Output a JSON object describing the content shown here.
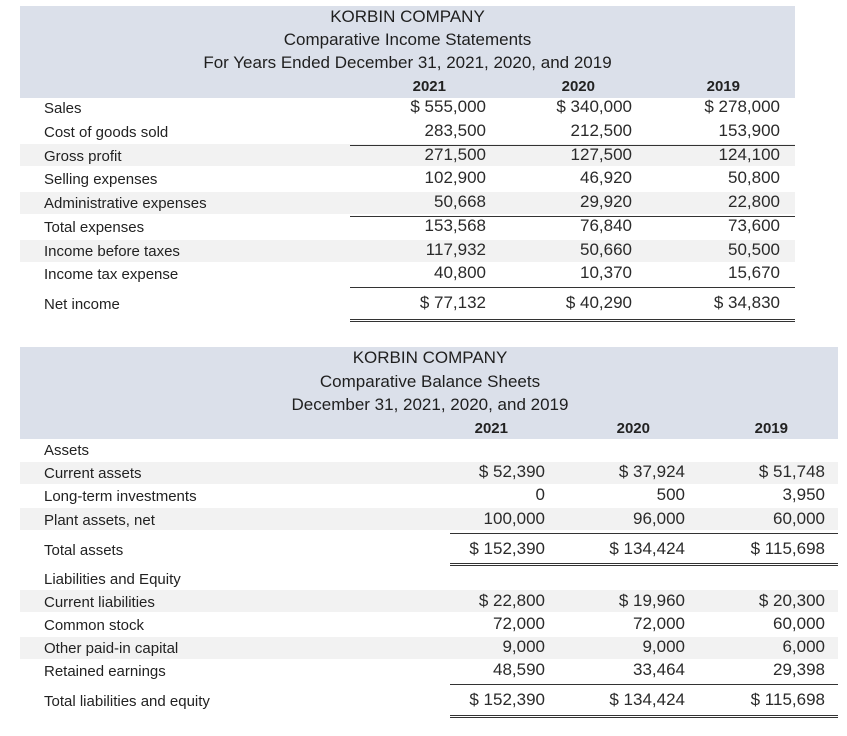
{
  "income": {
    "title_lines": [
      "KORBIN COMPANY",
      "Comparative Income Statements",
      "For Years Ended December 31, 2021, 2020, and 2019"
    ],
    "years": [
      "2021",
      "2020",
      "2019"
    ],
    "rows": [
      {
        "label": "Sales",
        "values": [
          "$ 555,000",
          "$ 340,000",
          "$ 278,000"
        ]
      },
      {
        "label": "Cost of goods sold",
        "values": [
          "283,500",
          "212,500",
          "153,900"
        ]
      },
      {
        "label": "Gross profit",
        "values": [
          "271,500",
          "127,500",
          "124,100"
        ]
      },
      {
        "label": "Selling expenses",
        "values": [
          "102,900",
          "46,920",
          "50,800"
        ]
      },
      {
        "label": "Administrative expenses",
        "values": [
          "50,668",
          "29,920",
          "22,800"
        ]
      },
      {
        "label": "Total expenses",
        "values": [
          "153,568",
          "76,840",
          "73,600"
        ]
      },
      {
        "label": "Income before taxes",
        "values": [
          "117,932",
          "50,660",
          "50,500"
        ]
      },
      {
        "label": "Income tax expense",
        "values": [
          "40,800",
          "10,370",
          "15,670"
        ]
      },
      {
        "label": "Net income",
        "values": [
          "$ 77,132",
          "$ 40,290",
          "$ 34,830"
        ]
      }
    ]
  },
  "balance": {
    "title_lines": [
      "KORBIN COMPANY",
      "Comparative Balance Sheets",
      "December 31, 2021, 2020, and 2019"
    ],
    "years": [
      "2021",
      "2020",
      "2019"
    ],
    "rows": [
      {
        "label": "Assets",
        "values": [
          "",
          "",
          ""
        ]
      },
      {
        "label": "Current assets",
        "values": [
          "$ 52,390",
          "$ 37,924",
          "$ 51,748"
        ]
      },
      {
        "label": "Long-term investments",
        "values": [
          "0",
          "500",
          "3,950"
        ]
      },
      {
        "label": "Plant assets, net",
        "values": [
          "100,000",
          "96,000",
          "60,000"
        ]
      },
      {
        "label": "Total assets",
        "values": [
          "$ 152,390",
          "$ 134,424",
          "$ 115,698"
        ]
      },
      {
        "label": "Liabilities and Equity",
        "values": [
          "",
          "",
          ""
        ]
      },
      {
        "label": "Current liabilities",
        "values": [
          "$ 22,800",
          "$ 19,960",
          "$ 20,300"
        ]
      },
      {
        "label": "Common stock",
        "values": [
          "72,000",
          "72,000",
          "60,000"
        ]
      },
      {
        "label": "Other paid-in capital",
        "values": [
          "9,000",
          "9,000",
          "6,000"
        ]
      },
      {
        "label": "Retained earnings",
        "values": [
          "48,590",
          "33,464",
          "29,398"
        ]
      },
      {
        "label": "Total liabilities and equity",
        "values": [
          "$ 152,390",
          "$ 134,424",
          "$ 115,698"
        ]
      }
    ]
  }
}
